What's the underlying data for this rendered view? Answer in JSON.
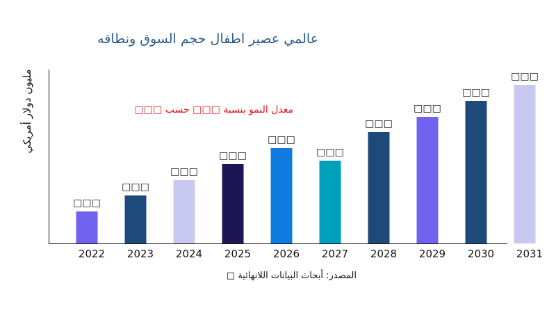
{
  "chart_data": {
    "type": "bar",
    "title": "عالمي عصير اطفال حجم السوق ونطاقه",
    "ylabel": "مليون دولار أمريكي",
    "xlabel": "",
    "annotation": "معدل النمو بنسبة □□□ حسب □□□",
    "source": "المصدر: أبحاث البيانات اللانهائية □",
    "categories": [
      "2022",
      "2023",
      "2024",
      "2025",
      "2026",
      "2027",
      "2028",
      "2029",
      "2030",
      "2031"
    ],
    "values": [
      46,
      69,
      91,
      114,
      137,
      119,
      160,
      182,
      205,
      228
    ],
    "data_labels": [
      "□□□",
      "□□□",
      "□□□",
      "□□□",
      "□□□",
      "□□□",
      "□□□",
      "□□□",
      "□□□",
      "□□□"
    ],
    "colors": [
      "#7163f0",
      "#1e4a7a",
      "#c8c8f0",
      "#1c1654",
      "#0f7be0",
      "#00a0bd",
      "#1e4a7a",
      "#7163f0",
      "#1e4a7a",
      "#c8c8f0"
    ],
    "ylim": [
      0,
      250
    ],
    "grid": false,
    "legend": "none"
  }
}
